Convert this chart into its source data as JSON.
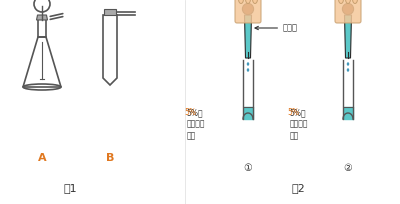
{
  "bg_color": "#ffffff",
  "fig1_label": "图1",
  "fig2_label": "图2",
  "label_A": "A",
  "label_B": "B",
  "label_1": "①",
  "label_2": "②",
  "text_xiliusuan": "稀硫酸",
  "text_h2o2_1": "5%的\n过氧化氢\n溶液",
  "text_h2o2_2": "5%的\n过氧化氢\n溶液",
  "orange_color": "#e07820",
  "black_color": "#333333",
  "gray_color": "#888888",
  "light_gray": "#cccccc",
  "teal_color": "#5bc8c8",
  "dark_brown": "#8B3A10",
  "skin_color": "#F5C89A",
  "tube_outline": "#555555"
}
